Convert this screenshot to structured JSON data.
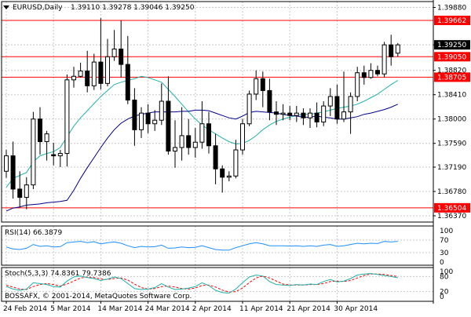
{
  "header": {
    "symbol": "EURUSD,Daily",
    "ohlc": "1.39110 1.39278 1.39046 1.39250",
    "triangle_icon": "triangle-down-icon"
  },
  "watermark": "BOSSAFX, © 2001-2014, MetaQuotes Software Corp.",
  "colors": {
    "background": "#ffffff",
    "frame": "#000000",
    "grid": "#c8c8c8",
    "candle": "#000000",
    "bull_body": "#ffffff",
    "bear_body": "#000000",
    "level_line": "#ff0000",
    "ma_fast": "#20b2aa",
    "ma_slow": "#00008b",
    "rsi": "#1e90ff",
    "stoch_main": "#20b2aa",
    "stoch_signal": "#ff0000"
  },
  "chart_data": [
    {
      "type": "candlestick",
      "panel": "main",
      "title": "EURUSD,Daily",
      "ylim": [
        1.3637,
        1.399
      ],
      "yticks": [
        "1.39880",
        "1.39250",
        "1.38820",
        "1.38410",
        "1.38000",
        "1.37590",
        "1.37190",
        "1.36780",
        "1.36370"
      ],
      "ytick_values": [
        1.3988,
        1.3925,
        1.3882,
        1.3841,
        1.38,
        1.3759,
        1.3719,
        1.3678,
        1.3637
      ],
      "xtick_labels": [
        "24 Feb 2014",
        "5 Mar 2014",
        "14 Mar 2014",
        "24 Mar 2014",
        "2 Apr 2014",
        "11 Apr 2014",
        "21 Apr 2014",
        "30 Apr 2014"
      ],
      "xtick_index": [
        0,
        7,
        14,
        21,
        28,
        35,
        42,
        49
      ],
      "current_price_label": "1.39250",
      "horizontal_levels": [
        1.39662,
        1.3905,
        1.38705,
        1.36504
      ],
      "level_labels": [
        "1.39662",
        "1.39050",
        "1.38705",
        "1.36504"
      ],
      "ohlc": [
        [
          1.3712,
          1.3748,
          1.3701,
          1.3738
        ],
        [
          1.3738,
          1.3762,
          1.3666,
          1.3682
        ],
        [
          1.3682,
          1.3712,
          1.3651,
          1.3668
        ],
        [
          1.3668,
          1.3702,
          1.3648,
          1.3689
        ],
        [
          1.3689,
          1.3812,
          1.3682,
          1.38
        ],
        [
          1.38,
          1.382,
          1.374,
          1.3762
        ],
        [
          1.3762,
          1.378,
          1.373,
          1.3775
        ],
        [
          1.374,
          1.376,
          1.3722,
          1.3738
        ],
        [
          1.3738,
          1.3748,
          1.3719,
          1.3742
        ],
        [
          1.3742,
          1.3875,
          1.372,
          1.3866
        ],
        [
          1.3866,
          1.3888,
          1.3853,
          1.3872
        ],
        [
          1.3872,
          1.3895,
          1.387,
          1.3881
        ],
        [
          1.3881,
          1.3915,
          1.3845,
          1.3856
        ],
        [
          1.3856,
          1.391,
          1.3849,
          1.3896
        ],
        [
          1.3896,
          1.397,
          1.385,
          1.386
        ],
        [
          1.386,
          1.3935,
          1.3855,
          1.3905
        ],
        [
          1.3905,
          1.395,
          1.3898,
          1.3918
        ],
        [
          1.3918,
          1.3966,
          1.387,
          1.3892
        ],
        [
          1.3892,
          1.394,
          1.3825,
          1.3832
        ],
        [
          1.3832,
          1.3852,
          1.3755,
          1.3782
        ],
        [
          1.3782,
          1.382,
          1.3768,
          1.381
        ],
        [
          1.381,
          1.3825,
          1.3776,
          1.3792
        ],
        [
          1.3792,
          1.3815,
          1.378,
          1.3798
        ],
        [
          1.3798,
          1.386,
          1.379,
          1.383
        ],
        [
          1.383,
          1.3872,
          1.374,
          1.3746
        ],
        [
          1.3746,
          1.3798,
          1.3718,
          1.3752
        ],
        [
          1.3752,
          1.382,
          1.373,
          1.3772
        ],
        [
          1.3772,
          1.38,
          1.374,
          1.3752
        ],
        [
          1.3752,
          1.3785,
          1.3735,
          1.3761
        ],
        [
          1.3761,
          1.383,
          1.375,
          1.3792
        ],
        [
          1.3792,
          1.3812,
          1.3742,
          1.3755
        ],
        [
          1.3755,
          1.3775,
          1.369,
          1.3716
        ],
        [
          1.3716,
          1.3722,
          1.3676,
          1.3702
        ],
        [
          1.3702,
          1.3712,
          1.3695,
          1.3704
        ],
        [
          1.3704,
          1.3765,
          1.37,
          1.3748
        ],
        [
          1.3748,
          1.38,
          1.374,
          1.3792
        ],
        [
          1.3792,
          1.3848,
          1.3788,
          1.3842
        ],
        [
          1.3842,
          1.3882,
          1.3832,
          1.3868
        ],
        [
          1.3868,
          1.388,
          1.382,
          1.3848
        ],
        [
          1.3848,
          1.3868,
          1.3798,
          1.3812
        ],
        [
          1.3812,
          1.383,
          1.379,
          1.3808
        ],
        [
          1.3808,
          1.3825,
          1.3798,
          1.381
        ],
        [
          1.381,
          1.3822,
          1.3798,
          1.3806
        ],
        [
          1.3806,
          1.3822,
          1.3795,
          1.381
        ],
        [
          1.381,
          1.3818,
          1.379,
          1.3802
        ],
        [
          1.3802,
          1.3818,
          1.3785,
          1.381
        ],
        [
          1.381,
          1.3828,
          1.3786,
          1.3795
        ],
        [
          1.3795,
          1.383,
          1.3788,
          1.3822
        ],
        [
          1.3822,
          1.3852,
          1.3805,
          1.3838
        ],
        [
          1.3838,
          1.3858,
          1.3792,
          1.38
        ],
        [
          1.38,
          1.388,
          1.3795,
          1.3812
        ],
        [
          1.3812,
          1.3845,
          1.3775,
          1.3838
        ],
        [
          1.3838,
          1.3888,
          1.383,
          1.3878
        ],
        [
          1.3878,
          1.389,
          1.3858,
          1.387
        ],
        [
          1.387,
          1.3894,
          1.3868,
          1.3882
        ],
        [
          1.3882,
          1.389,
          1.3872,
          1.3876
        ],
        [
          1.3876,
          1.393,
          1.387,
          1.3925
        ],
        [
          1.3925,
          1.3942,
          1.389,
          1.3905
        ],
        [
          1.3911,
          1.3928,
          1.3905,
          1.3925
        ]
      ],
      "series": [
        {
          "name": "MA fast",
          "values": [
            1.3685,
            1.37,
            1.3705,
            1.371,
            1.3728,
            1.3738,
            1.3742,
            1.3745,
            1.3752,
            1.377,
            1.3788,
            1.3802,
            1.3814,
            1.3826,
            1.3838,
            1.3848,
            1.3858,
            1.3862,
            1.3865,
            1.3868,
            1.3872,
            1.387,
            1.3866,
            1.3862,
            1.385,
            1.3838,
            1.3825,
            1.3812,
            1.38,
            1.379,
            1.3782,
            1.3775,
            1.3768,
            1.3762,
            1.3758,
            1.3759,
            1.3764,
            1.3772,
            1.3782,
            1.379,
            1.3796,
            1.38,
            1.3803,
            1.3806,
            1.3808,
            1.3808,
            1.381,
            1.3812,
            1.3815,
            1.3818,
            1.382,
            1.3822,
            1.3825,
            1.383,
            1.3836,
            1.3842,
            1.385,
            1.3858,
            1.3865
          ]
        },
        {
          "name": "MA slow",
          "values": [
            1.3645,
            1.365,
            1.3652,
            1.3655,
            1.3656,
            1.3657,
            1.3659,
            1.366,
            1.3661,
            1.3663,
            1.368,
            1.37,
            1.3718,
            1.3735,
            1.3752,
            1.3768,
            1.3782,
            1.3793,
            1.38,
            1.3805,
            1.3808,
            1.381,
            1.3812,
            1.3812,
            1.3812,
            1.3812,
            1.3813,
            1.3813,
            1.3815,
            1.3815,
            1.3814,
            1.381,
            1.3806,
            1.3802,
            1.38,
            1.3805,
            1.3811,
            1.3813,
            1.3812,
            1.3811,
            1.381,
            1.3808,
            1.3806,
            1.3805,
            1.3803,
            1.3803,
            1.3805,
            1.3803,
            1.3802,
            1.38,
            1.38,
            1.3802,
            1.3804,
            1.3808,
            1.381,
            1.3813,
            1.3816,
            1.382,
            1.3825
          ]
        }
      ]
    },
    {
      "type": "line",
      "panel": "rsi",
      "title": "RSI(14) 66.3879",
      "ylim": [
        0,
        100
      ],
      "yticks": [
        "100",
        "70",
        "30",
        "0"
      ],
      "ytick_values": [
        100,
        70,
        30,
        0
      ],
      "series": [
        {
          "name": "RSI(14)",
          "values": [
            48,
            42,
            40,
            44,
            56,
            50,
            52,
            48,
            49,
            62,
            64,
            66,
            62,
            65,
            58,
            62,
            64,
            60,
            52,
            46,
            50,
            48,
            49,
            54,
            44,
            45,
            48,
            46,
            47,
            52,
            46,
            40,
            38,
            38,
            46,
            52,
            58,
            62,
            58,
            52,
            52,
            52,
            51,
            52,
            50,
            52,
            50,
            54,
            56,
            50,
            52,
            56,
            60,
            58,
            60,
            59,
            66,
            64,
            66
          ]
        }
      ]
    },
    {
      "type": "line",
      "panel": "stochastic",
      "title": "Stoch(5,3,3) 74.8361 79.7386",
      "ylim": [
        0,
        100
      ],
      "yticks": [
        "100",
        "80",
        "20",
        "0"
      ],
      "ytick_values": [
        100,
        80,
        20,
        0
      ],
      "series": [
        {
          "name": "Stoch(5,3,3) main",
          "values": [
            40,
            30,
            25,
            30,
            55,
            52,
            48,
            40,
            38,
            62,
            78,
            82,
            76,
            72,
            64,
            70,
            78,
            72,
            52,
            32,
            28,
            30,
            36,
            52,
            38,
            28,
            30,
            34,
            40,
            55,
            44,
            25,
            16,
            14,
            30,
            55,
            78,
            86,
            82,
            60,
            48,
            46,
            44,
            48,
            46,
            50,
            48,
            60,
            68,
            58,
            62,
            72,
            86,
            90,
            92,
            88,
            84,
            80,
            75
          ]
        },
        {
          "name": "Stoch(5,3,3) signal",
          "values": [
            45,
            38,
            30,
            28,
            40,
            48,
            52,
            48,
            42,
            50,
            62,
            74,
            78,
            76,
            70,
            68,
            72,
            74,
            66,
            50,
            36,
            30,
            32,
            40,
            42,
            38,
            32,
            30,
            34,
            44,
            46,
            38,
            26,
            18,
            20,
            34,
            56,
            74,
            82,
            74,
            62,
            50,
            46,
            46,
            46,
            48,
            48,
            52,
            60,
            62,
            60,
            64,
            74,
            84,
            90,
            90,
            88,
            84,
            80
          ]
        }
      ]
    }
  ]
}
